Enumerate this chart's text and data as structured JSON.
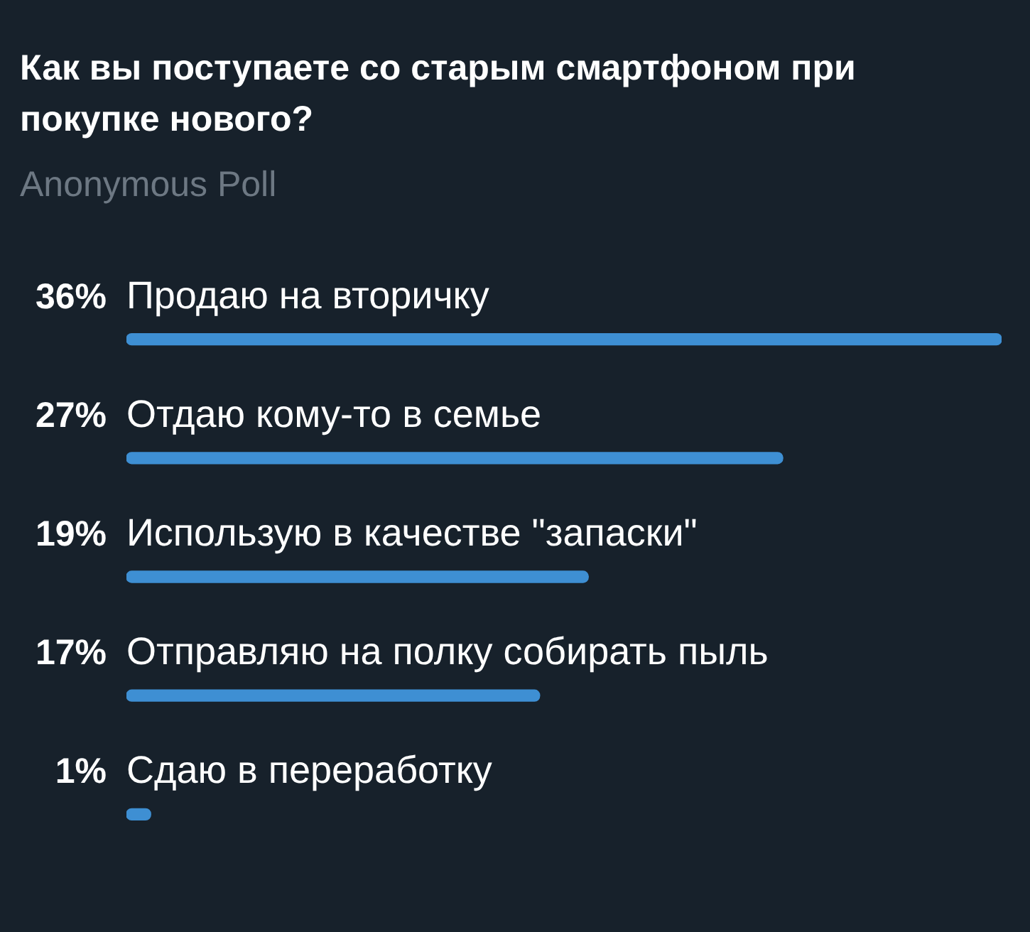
{
  "chart_data": {
    "type": "bar",
    "orientation": "horizontal",
    "title": "Как вы поступаете со старым смартфоном при покупке нового?",
    "subtitle": "Anonymous Poll",
    "categories": [
      "Продаю на вторичку",
      "Отдаю кому-то в семье",
      "Использую в качестве \"запаски\"",
      "Отправляю на полку собирать пыль",
      "Сдаю в переработку"
    ],
    "values": [
      36,
      27,
      19,
      17,
      1
    ],
    "value_labels": [
      "36%",
      "27%",
      "19%",
      "17%",
      "1%"
    ],
    "color": "#3e8fd3"
  }
}
